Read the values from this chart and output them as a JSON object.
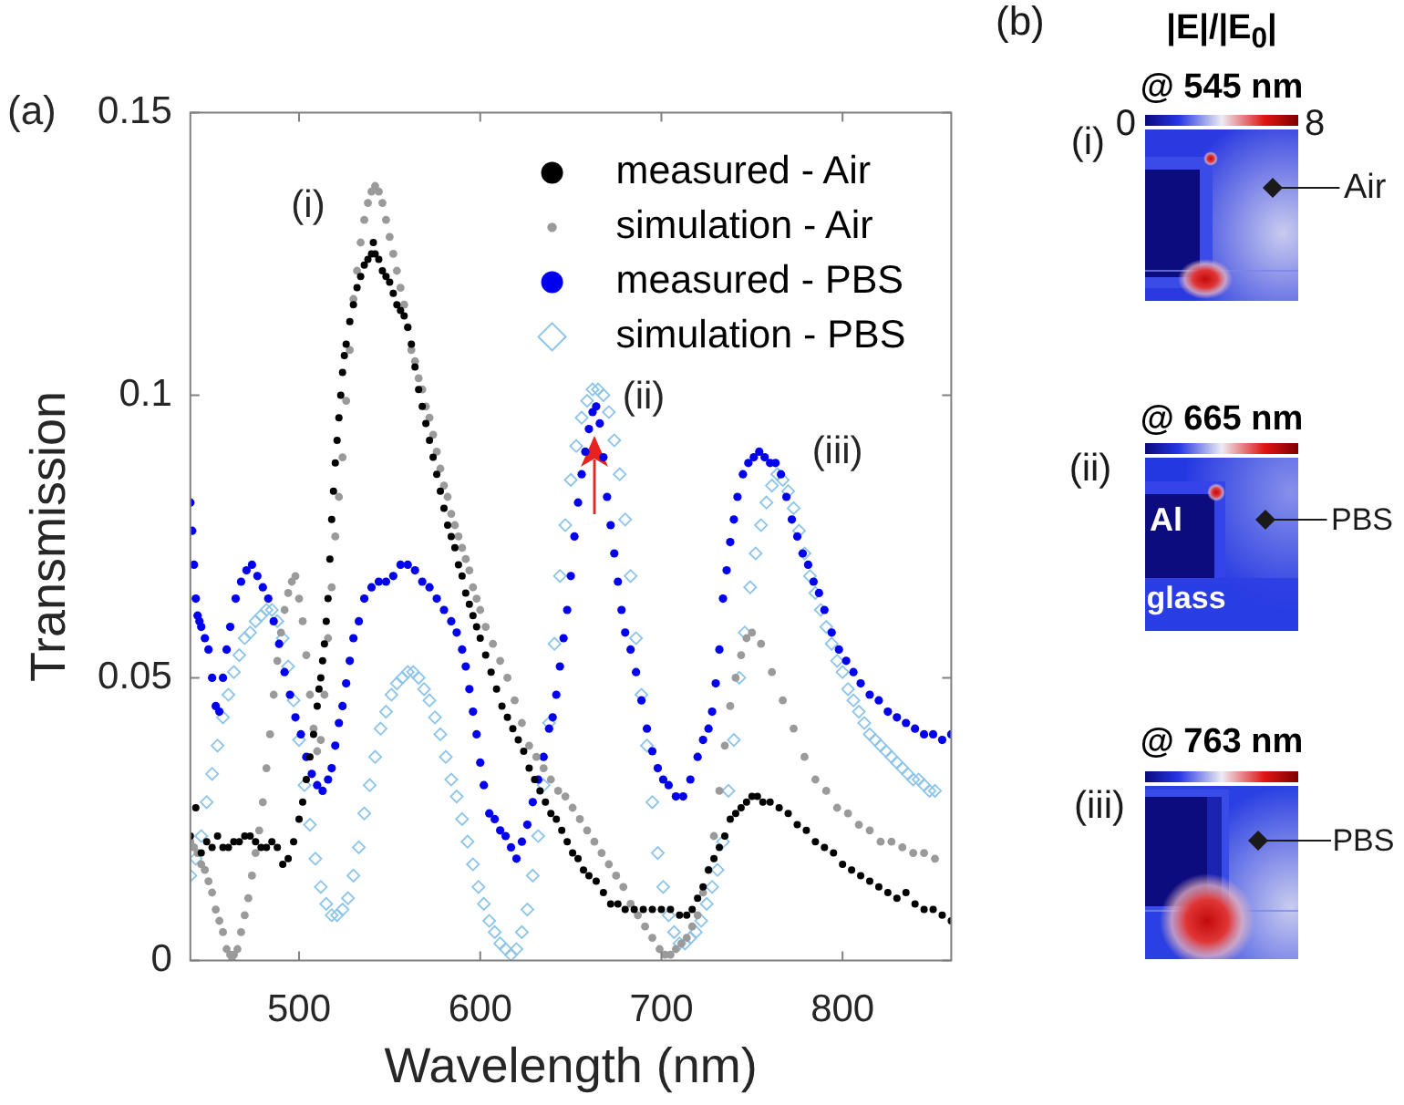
{
  "chart_data": [
    {
      "type": "scatter",
      "xlabel": "Wavelength (nm)",
      "ylabel": "Transmission",
      "xlim": [
        440,
        860
      ],
      "ylim": [
        0,
        0.15
      ],
      "xticks": [
        500,
        600,
        700,
        800
      ],
      "yticks": [
        0,
        0.05,
        0.1,
        0.15
      ],
      "legend": "top right",
      "annotations": [
        "(a)",
        "(i)",
        "(ii)",
        "(iii)"
      ],
      "series": [
        {
          "name": "measured - Air",
          "color": "#000000",
          "marker": "circle",
          "x": [
            440,
            443,
            446,
            449,
            452,
            455,
            458,
            461,
            464,
            467,
            470,
            473,
            476,
            479,
            482,
            485,
            488,
            491,
            494,
            497,
            500,
            502,
            504,
            506,
            508,
            510,
            511,
            512,
            513,
            514,
            515,
            516,
            517,
            518,
            519,
            520,
            521,
            522,
            523,
            524,
            525,
            526,
            528,
            530,
            532,
            534,
            536,
            538,
            540,
            541,
            542,
            544,
            546,
            548,
            550,
            552,
            554,
            556,
            558,
            560,
            562,
            564,
            566,
            568,
            570,
            572,
            574,
            576,
            578,
            580,
            582,
            584,
            586,
            588,
            590,
            592,
            594,
            596,
            598,
            600,
            603,
            606,
            609,
            612,
            615,
            618,
            621,
            624,
            627,
            630,
            633,
            636,
            639,
            642,
            645,
            648,
            651,
            654,
            657,
            660,
            664,
            668,
            672,
            676,
            680,
            685,
            690,
            695,
            700,
            705,
            710,
            714,
            717,
            720,
            723,
            726,
            729,
            732,
            735,
            738,
            741,
            744,
            747,
            750,
            753,
            756,
            760,
            765,
            770,
            775,
            780,
            785,
            790,
            795,
            800,
            805,
            810,
            815,
            820,
            825,
            830,
            835,
            840,
            845,
            850,
            855,
            860
          ],
          "values": [
            0.022,
            0.027,
            0.019,
            0.021,
            0.02,
            0.022,
            0.02,
            0.02,
            0.021,
            0.021,
            0.022,
            0.022,
            0.021,
            0.02,
            0.02,
            0.021,
            0.02,
            0.017,
            0.018,
            0.021,
            0.025,
            0.028,
            0.032,
            0.036,
            0.04,
            0.045,
            0.048,
            0.05,
            0.053,
            0.056,
            0.06,
            0.064,
            0.071,
            0.078,
            0.083,
            0.088,
            0.092,
            0.096,
            0.1,
            0.104,
            0.107,
            0.109,
            0.113,
            0.116,
            0.119,
            0.121,
            0.123,
            0.124,
            0.125,
            0.127,
            0.125,
            0.124,
            0.122,
            0.121,
            0.12,
            0.118,
            0.116,
            0.115,
            0.114,
            0.112,
            0.109,
            0.105,
            0.101,
            0.098,
            0.095,
            0.092,
            0.089,
            0.086,
            0.083,
            0.08,
            0.077,
            0.075,
            0.073,
            0.07,
            0.068,
            0.065,
            0.063,
            0.061,
            0.059,
            0.057,
            0.054,
            0.051,
            0.048,
            0.045,
            0.043,
            0.041,
            0.039,
            0.037,
            0.034,
            0.032,
            0.03,
            0.028,
            0.026,
            0.025,
            0.023,
            0.021,
            0.019,
            0.018,
            0.016,
            0.015,
            0.014,
            0.012,
            0.01,
            0.01,
            0.009,
            0.009,
            0.009,
            0.009,
            0.009,
            0.009,
            0.008,
            0.008,
            0.009,
            0.011,
            0.013,
            0.016,
            0.018,
            0.02,
            0.022,
            0.025,
            0.026,
            0.027,
            0.028,
            0.029,
            0.029,
            0.028,
            0.028,
            0.027,
            0.026,
            0.024,
            0.023,
            0.021,
            0.02,
            0.019,
            0.017,
            0.016,
            0.015,
            0.014,
            0.013,
            0.012,
            0.011,
            0.012,
            0.01,
            0.009,
            0.009,
            0.008,
            0.007
          ]
        },
        {
          "name": "simulation - Air",
          "color": "#9a9a9a",
          "marker": "circle",
          "x": [
            440,
            442,
            444,
            446,
            448,
            450,
            452,
            454,
            456,
            458,
            460,
            462,
            463,
            464,
            466,
            468,
            470,
            472,
            474,
            476,
            478,
            480,
            482,
            484,
            486,
            488,
            490,
            492,
            494,
            496,
            498,
            500,
            502,
            504,
            506,
            508,
            510,
            512,
            514,
            516,
            518,
            520,
            522,
            524,
            526,
            528,
            530,
            532,
            534,
            536,
            538,
            540,
            542,
            544,
            546,
            548,
            550,
            552,
            554,
            556,
            558,
            560,
            562,
            564,
            566,
            568,
            570,
            572,
            574,
            576,
            578,
            580,
            582,
            584,
            586,
            588,
            590,
            592,
            594,
            596,
            598,
            600,
            603,
            607,
            611,
            615,
            619,
            623,
            627,
            631,
            635,
            639,
            643,
            647,
            651,
            655,
            659,
            663,
            667,
            671,
            675,
            679,
            683,
            687,
            691,
            695,
            699,
            702,
            705,
            708,
            711,
            714,
            717,
            720,
            723,
            726,
            729,
            732,
            735,
            738,
            741,
            744,
            747,
            750,
            755,
            761,
            767,
            773,
            779,
            785,
            791,
            797,
            803,
            809,
            815,
            821,
            827,
            833,
            839,
            845,
            851
          ],
          "values": [
            0.021,
            0.02,
            0.019,
            0.017,
            0.016,
            0.014,
            0.012,
            0.009,
            0.007,
            0.005,
            0.002,
            0.001,
            0,
            0.001,
            0.002,
            0.005,
            0.008,
            0.011,
            0.015,
            0.019,
            0.023,
            0.028,
            0.034,
            0.04,
            0.047,
            0.053,
            0.058,
            0.062,
            0.065,
            0.067,
            0.068,
            0.064,
            0.06,
            0.054,
            0.047,
            0.041,
            0.037,
            0.039,
            0.047,
            0.057,
            0.066,
            0.075,
            0.082,
            0.089,
            0.099,
            0.108,
            0.117,
            0.122,
            0.127,
            0.131,
            0.134,
            0.136,
            0.137,
            0.136,
            0.134,
            0.131,
            0.128,
            0.125,
            0.122,
            0.119,
            0.116,
            0.112,
            0.108,
            0.106,
            0.103,
            0.101,
            0.098,
            0.096,
            0.093,
            0.09,
            0.087,
            0.084,
            0.082,
            0.079,
            0.077,
            0.075,
            0.073,
            0.071,
            0.069,
            0.066,
            0.064,
            0.062,
            0.059,
            0.056,
            0.053,
            0.05,
            0.046,
            0.042,
            0.038,
            0.036,
            0.034,
            0.032,
            0.03,
            0.029,
            0.027,
            0.025,
            0.023,
            0.021,
            0.019,
            0.017,
            0.015,
            0.013,
            0.01,
            0.008,
            0.006,
            0.004,
            0.002,
            0.001,
            0.001,
            0.002,
            0.003,
            0.004,
            0.006,
            0.008,
            0.012,
            0.016,
            0.022,
            0.03,
            0.038,
            0.045,
            0.05,
            0.054,
            0.057,
            0.058,
            0.056,
            0.051,
            0.046,
            0.041,
            0.036,
            0.032,
            0.03,
            0.027,
            0.026,
            0.024,
            0.023,
            0.021,
            0.021,
            0.02,
            0.019,
            0.019,
            0.018
          ]
        },
        {
          "name": "measured - PBS",
          "color": "#0000ee",
          "marker": "circle",
          "x": [
            440,
            441,
            442,
            443,
            444,
            445,
            446,
            448,
            450,
            452,
            454,
            456,
            458,
            460,
            462,
            465,
            468,
            471,
            474,
            477,
            480,
            483,
            486,
            489,
            492,
            495,
            498,
            501,
            504,
            507,
            510,
            513,
            516,
            518,
            520,
            522,
            524,
            526,
            528,
            530,
            533,
            536,
            540,
            544,
            548,
            552,
            556,
            560,
            564,
            568,
            572,
            576,
            580,
            584,
            587,
            590,
            592,
            594,
            596,
            598,
            600,
            602,
            605,
            608,
            611,
            614,
            617,
            620,
            623,
            626,
            629,
            632,
            635,
            638,
            640,
            642,
            644,
            646,
            648,
            650,
            652,
            654,
            656,
            658,
            660,
            662,
            664,
            666,
            668,
            670,
            672,
            674,
            676,
            678,
            680,
            683,
            686,
            689,
            692,
            695,
            698,
            701,
            704,
            708,
            712,
            716,
            720,
            723,
            726,
            728,
            730,
            732,
            734,
            736,
            738,
            740,
            742,
            745,
            748,
            751,
            754,
            757,
            760,
            763,
            766,
            769,
            772,
            775,
            778,
            781,
            784,
            787,
            790,
            794,
            798,
            802,
            806,
            810,
            815,
            820,
            825,
            830,
            835,
            840,
            845,
            850,
            855,
            860
          ],
          "values": [
            0.081,
            0.076,
            0.07,
            0.064,
            0.061,
            0.06,
            0.059,
            0.057,
            0.055,
            0.05,
            0.045,
            0.044,
            0.05,
            0.055,
            0.059,
            0.064,
            0.067,
            0.069,
            0.07,
            0.068,
            0.066,
            0.064,
            0.06,
            0.056,
            0.051,
            0.047,
            0.043,
            0.04,
            0.036,
            0.033,
            0.031,
            0.03,
            0.032,
            0.034,
            0.038,
            0.042,
            0.045,
            0.049,
            0.053,
            0.057,
            0.06,
            0.064,
            0.066,
            0.067,
            0.067,
            0.068,
            0.07,
            0.07,
            0.069,
            0.067,
            0.066,
            0.064,
            0.062,
            0.06,
            0.058,
            0.055,
            0.052,
            0.048,
            0.044,
            0.04,
            0.035,
            0.031,
            0.026,
            0.025,
            0.023,
            0.022,
            0.02,
            0.018,
            0.021,
            0.024,
            0.028,
            0.032,
            0.036,
            0.041,
            0.043,
            0.047,
            0.052,
            0.057,
            0.062,
            0.068,
            0.075,
            0.081,
            0.086,
            0.09,
            0.094,
            0.097,
            0.098,
            0.095,
            0.089,
            0.082,
            0.077,
            0.072,
            0.067,
            0.062,
            0.058,
            0.055,
            0.051,
            0.046,
            0.041,
            0.037,
            0.034,
            0.032,
            0.031,
            0.029,
            0.029,
            0.032,
            0.036,
            0.039,
            0.041,
            0.044,
            0.049,
            0.055,
            0.064,
            0.069,
            0.074,
            0.078,
            0.082,
            0.086,
            0.088,
            0.089,
            0.09,
            0.089,
            0.088,
            0.088,
            0.086,
            0.082,
            0.078,
            0.075,
            0.072,
            0.07,
            0.067,
            0.065,
            0.062,
            0.058,
            0.055,
            0.053,
            0.051,
            0.049,
            0.047,
            0.046,
            0.044,
            0.043,
            0.042,
            0.041,
            0.04,
            0.04,
            0.039,
            0.04
          ]
        },
        {
          "name": "simulation - PBS",
          "color": "#8cc4ea",
          "marker": "diamond",
          "x": [
            440,
            443,
            446,
            449,
            452,
            455,
            458,
            461,
            464,
            467,
            470,
            473,
            476,
            479,
            482,
            485,
            488,
            491,
            494,
            497,
            500,
            503,
            506,
            509,
            512,
            515,
            518,
            521,
            524,
            527,
            530,
            533,
            536,
            539,
            542,
            545,
            548,
            551,
            554,
            557,
            560,
            563,
            566,
            569,
            572,
            575,
            578,
            581,
            584,
            587,
            590,
            593,
            596,
            599,
            602,
            605,
            608,
            611,
            614,
            617,
            620,
            623,
            626,
            629,
            632,
            635,
            638,
            641,
            644,
            647,
            650,
            653,
            656,
            659,
            662,
            665,
            668,
            671,
            674,
            677,
            680,
            683,
            686,
            689,
            692,
            695,
            698,
            701,
            704,
            707,
            710,
            713,
            716,
            719,
            722,
            725,
            728,
            731,
            734,
            737,
            740,
            743,
            746,
            749,
            752,
            755,
            758,
            761,
            764,
            767,
            770,
            773,
            776,
            779,
            782,
            785,
            788,
            791,
            794,
            797,
            800,
            803,
            806,
            809,
            812,
            815,
            818,
            821,
            824,
            827,
            830,
            833,
            836,
            839,
            842,
            845,
            848,
            851
          ],
          "values": [
            0.015,
            0.018,
            0.022,
            0.028,
            0.033,
            0.038,
            0.043,
            0.047,
            0.051,
            0.054,
            0.057,
            0.058,
            0.06,
            0.061,
            0.062,
            0.062,
            0.06,
            0.057,
            0.052,
            0.046,
            0.039,
            0.031,
            0.024,
            0.018,
            0.013,
            0.01,
            0.008,
            0.008,
            0.009,
            0.011,
            0.015,
            0.02,
            0.026,
            0.031,
            0.036,
            0.041,
            0.044,
            0.047,
            0.049,
            0.05,
            0.051,
            0.051,
            0.05,
            0.048,
            0.046,
            0.043,
            0.04,
            0.036,
            0.032,
            0.029,
            0.025,
            0.021,
            0.017,
            0.013,
            0.01,
            0.007,
            0.005,
            0.003,
            0.002,
            0.001,
            0.002,
            0.005,
            0.009,
            0.015,
            0.022,
            0.031,
            0.042,
            0.056,
            0.068,
            0.077,
            0.085,
            0.091,
            0.096,
            0.099,
            0.101,
            0.101,
            0.1,
            0.097,
            0.092,
            0.086,
            0.078,
            0.068,
            0.057,
            0.047,
            0.038,
            0.028,
            0.019,
            0.013,
            0.008,
            0.005,
            0.003,
            0.003,
            0.004,
            0.005,
            0.007,
            0.01,
            0.013,
            0.016,
            0.021,
            0.03,
            0.039,
            0.05,
            0.058,
            0.066,
            0.072,
            0.077,
            0.081,
            0.084,
            0.086,
            0.085,
            0.083,
            0.08,
            0.076,
            0.072,
            0.068,
            0.065,
            0.062,
            0.059,
            0.056,
            0.053,
            0.051,
            0.048,
            0.046,
            0.044,
            0.042,
            0.04,
            0.039,
            0.038,
            0.037,
            0.036,
            0.035,
            0.034,
            0.033,
            0.032,
            0.032,
            0.031,
            0.03,
            0.03
          ]
        }
      ]
    },
    {
      "type": "other",
      "title": "@ 545 nm",
      "clabel": "|E|/|E$_{0}$|",
      "annotations": [
        "(b)",
        "(i)",
        "0",
        "8",
        "Air"
      ]
    },
    {
      "type": "other",
      "title": "@ 665 nm",
      "annotations": [
        "(ii)",
        "Al",
        "glass",
        "PBS"
      ]
    },
    {
      "type": "other",
      "title": "@ 763 nm",
      "annotations": [
        "(iii)",
        "PBS"
      ]
    }
  ]
}
